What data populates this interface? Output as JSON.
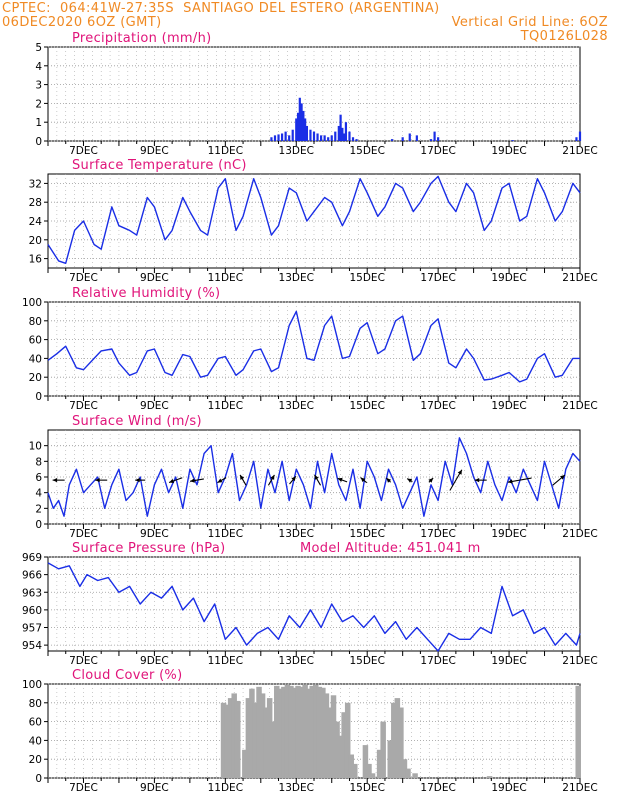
{
  "header": {
    "line1_left": "CPTEC:  064:41W-27:35S  SANTIAGO DEL ESTERO (ARGENTINA)",
    "line2_left": "06DEC2020 6OZ (GMT)",
    "line2_right": "Vertical Grid Line: 6OZ",
    "line3_right": "TQ0126L028"
  },
  "colors": {
    "header": "#f08a24",
    "title": "#e0147a",
    "series": "#1a2ee6",
    "cloud": "#a9a9a9"
  },
  "chart_data": [
    {
      "type": "bar",
      "title": "Precipitation (mm/h)",
      "ylim": [
        0,
        5
      ],
      "yticks": [
        0,
        1,
        2,
        3,
        4,
        5
      ],
      "xlim": [
        0,
        15
      ],
      "xticks": [
        {
          "x": 1,
          "label": "7DEC"
        },
        {
          "x": 3,
          "label": "9DEC"
        },
        {
          "x": 5,
          "label": "11DEC"
        },
        {
          "x": 7,
          "label": "13DEC"
        },
        {
          "x": 9,
          "label": "15DEC"
        },
        {
          "x": 11,
          "label": "17DEC"
        },
        {
          "x": 13,
          "label": "19DEC"
        },
        {
          "x": 15,
          "label": "21DEC"
        }
      ],
      "x": [
        6.3,
        6.4,
        6.5,
        6.6,
        6.7,
        6.8,
        6.9,
        7.0,
        7.05,
        7.1,
        7.15,
        7.2,
        7.25,
        7.3,
        7.4,
        7.5,
        7.6,
        7.7,
        7.8,
        7.9,
        8.0,
        8.1,
        8.2,
        8.25,
        8.3,
        8.35,
        8.4,
        8.5,
        8.6,
        8.7,
        9.7,
        10.0,
        10.2,
        10.4,
        10.8,
        10.9,
        11.0,
        13.1,
        14.9,
        15.0
      ],
      "values": [
        0.2,
        0.3,
        0.35,
        0.4,
        0.5,
        0.3,
        0.6,
        1.2,
        1.5,
        2.3,
        2.0,
        1.6,
        1.2,
        0.8,
        0.6,
        0.5,
        0.4,
        0.3,
        0.3,
        0.2,
        0.3,
        0.5,
        0.8,
        1.4,
        0.7,
        0.4,
        1.0,
        0.5,
        0.2,
        0.1,
        0.1,
        0.2,
        0.4,
        0.3,
        0.1,
        0.5,
        0.2,
        0.05,
        0.2,
        0.5
      ]
    },
    {
      "type": "line",
      "title": "Surface Temperature (nC)",
      "ylim": [
        14,
        34
      ],
      "yticks": [
        16,
        20,
        24,
        28,
        32
      ],
      "xlim": [
        0,
        15
      ],
      "xticks": [
        {
          "x": 1,
          "label": "7DEC"
        },
        {
          "x": 3,
          "label": "9DEC"
        },
        {
          "x": 5,
          "label": "11DEC"
        },
        {
          "x": 7,
          "label": "13DEC"
        },
        {
          "x": 9,
          "label": "15DEC"
        },
        {
          "x": 11,
          "label": "17DEC"
        },
        {
          "x": 13,
          "label": "19DEC"
        },
        {
          "x": 15,
          "label": "21DEC"
        }
      ],
      "x": [
        0,
        0.3,
        0.5,
        0.75,
        1.0,
        1.3,
        1.5,
        1.8,
        2.0,
        2.3,
        2.5,
        2.8,
        3.0,
        3.3,
        3.5,
        3.8,
        4.0,
        4.3,
        4.5,
        4.8,
        5.0,
        5.3,
        5.5,
        5.8,
        6.0,
        6.3,
        6.5,
        6.8,
        7.0,
        7.3,
        7.5,
        7.8,
        8.0,
        8.3,
        8.5,
        8.8,
        9.0,
        9.3,
        9.5,
        9.8,
        10.0,
        10.3,
        10.5,
        10.8,
        11.0,
        11.3,
        11.5,
        11.8,
        12.0,
        12.3,
        12.5,
        12.8,
        13.0,
        13.3,
        13.5,
        13.8,
        14.0,
        14.3,
        14.5,
        14.8,
        15.0
      ],
      "values": [
        19,
        15.5,
        15,
        22,
        24,
        19,
        18,
        27,
        23,
        22,
        21,
        29,
        27,
        20,
        22,
        29,
        26,
        22,
        21,
        31,
        33,
        22,
        25,
        33,
        29,
        21,
        23,
        31,
        30,
        24,
        26,
        29,
        28,
        23,
        26,
        33,
        30,
        25,
        27,
        32,
        31,
        26,
        28,
        32,
        33.5,
        28,
        26,
        32,
        30,
        22,
        24,
        31,
        32,
        24,
        25,
        33,
        30,
        24,
        26,
        32,
        30
      ]
    },
    {
      "type": "line",
      "title": "Relative Humidity (%)",
      "ylim": [
        0,
        100
      ],
      "yticks": [
        0,
        20,
        40,
        60,
        80,
        100
      ],
      "xlim": [
        0,
        15
      ],
      "xticks": [
        {
          "x": 1,
          "label": "7DEC"
        },
        {
          "x": 3,
          "label": "9DEC"
        },
        {
          "x": 5,
          "label": "11DEC"
        },
        {
          "x": 7,
          "label": "13DEC"
        },
        {
          "x": 9,
          "label": "15DEC"
        },
        {
          "x": 11,
          "label": "17DEC"
        },
        {
          "x": 13,
          "label": "19DEC"
        },
        {
          "x": 15,
          "label": "21DEC"
        }
      ],
      "x": [
        0,
        0.25,
        0.5,
        0.8,
        1.0,
        1.3,
        1.5,
        1.8,
        2.0,
        2.3,
        2.5,
        2.8,
        3.0,
        3.3,
        3.5,
        3.8,
        4.0,
        4.3,
        4.5,
        4.8,
        5.0,
        5.3,
        5.5,
        5.8,
        6.0,
        6.3,
        6.5,
        6.8,
        7.0,
        7.3,
        7.5,
        7.8,
        8.0,
        8.3,
        8.5,
        8.8,
        9.0,
        9.3,
        9.5,
        9.8,
        10.0,
        10.3,
        10.5,
        10.8,
        11.0,
        11.3,
        11.5,
        11.8,
        12.0,
        12.3,
        12.5,
        12.8,
        13.0,
        13.3,
        13.5,
        13.8,
        14.0,
        14.3,
        14.5,
        14.8,
        15.0
      ],
      "values": [
        38,
        45,
        53,
        30,
        28,
        40,
        48,
        50,
        35,
        22,
        25,
        48,
        50,
        25,
        22,
        44,
        42,
        20,
        22,
        40,
        42,
        22,
        28,
        48,
        50,
        26,
        30,
        75,
        90,
        40,
        38,
        75,
        85,
        40,
        42,
        72,
        78,
        45,
        50,
        80,
        85,
        38,
        45,
        75,
        82,
        35,
        30,
        50,
        40,
        17,
        18,
        22,
        25,
        15,
        18,
        40,
        45,
        20,
        22,
        40,
        40
      ]
    },
    {
      "type": "line",
      "title": "Surface Wind (m/s)",
      "ylim": [
        0,
        12
      ],
      "yticks": [
        0,
        2,
        4,
        6,
        8,
        10
      ],
      "xlim": [
        0,
        15
      ],
      "xticks": [
        {
          "x": 1,
          "label": "7DEC"
        },
        {
          "x": 3,
          "label": "9DEC"
        },
        {
          "x": 5,
          "label": "11DEC"
        },
        {
          "x": 7,
          "label": "13DEC"
        },
        {
          "x": 9,
          "label": "15DEC"
        },
        {
          "x": 11,
          "label": "17DEC"
        },
        {
          "x": 13,
          "label": "19DEC"
        },
        {
          "x": 15,
          "label": "21DEC"
        }
      ],
      "x": [
        0,
        0.15,
        0.3,
        0.45,
        0.6,
        0.8,
        1.0,
        1.2,
        1.4,
        1.6,
        1.8,
        2.0,
        2.2,
        2.4,
        2.6,
        2.8,
        3.0,
        3.2,
        3.4,
        3.6,
        3.8,
        4.0,
        4.2,
        4.4,
        4.6,
        4.8,
        5.0,
        5.2,
        5.4,
        5.6,
        5.8,
        6.0,
        6.2,
        6.4,
        6.6,
        6.8,
        7.0,
        7.2,
        7.4,
        7.6,
        7.8,
        8.0,
        8.2,
        8.4,
        8.6,
        8.8,
        9.0,
        9.2,
        9.4,
        9.6,
        9.8,
        10.0,
        10.2,
        10.4,
        10.6,
        10.8,
        11.0,
        11.2,
        11.4,
        11.6,
        11.8,
        12.0,
        12.2,
        12.4,
        12.6,
        12.8,
        13.0,
        13.2,
        13.4,
        13.6,
        13.8,
        14.0,
        14.2,
        14.4,
        14.6,
        14.8,
        15.0
      ],
      "values": [
        4,
        2,
        3,
        1,
        5,
        7,
        4,
        5,
        6,
        2,
        5,
        7,
        3,
        4,
        6,
        1,
        5,
        7,
        4,
        6,
        2,
        7,
        5,
        9,
        10,
        4,
        6,
        9,
        3,
        5,
        8,
        2,
        7,
        4,
        8,
        3,
        7,
        5,
        2,
        8,
        4,
        9,
        5,
        3,
        7,
        2,
        8,
        6,
        3,
        7,
        5,
        2,
        4,
        6,
        1,
        5,
        3,
        8,
        5,
        11,
        9,
        6,
        4,
        8,
        5,
        3,
        6,
        4,
        7,
        5,
        3,
        8,
        5,
        2,
        7,
        9,
        8
      ]
    },
    {
      "type": "line",
      "title": "Surface Pressure (hPa)",
      "annotation": "Model Altitude: 451.041 m",
      "ylim": [
        953,
        969
      ],
      "yticks": [
        954,
        957,
        960,
        963,
        966,
        969
      ],
      "xlim": [
        0,
        15
      ],
      "xticks": [
        {
          "x": 1,
          "label": "7DEC"
        },
        {
          "x": 3,
          "label": "9DEC"
        },
        {
          "x": 5,
          "label": "11DEC"
        },
        {
          "x": 7,
          "label": "13DEC"
        },
        {
          "x": 9,
          "label": "15DEC"
        },
        {
          "x": 11,
          "label": "17DEC"
        },
        {
          "x": 13,
          "label": "19DEC"
        },
        {
          "x": 15,
          "label": "21DEC"
        }
      ],
      "x": [
        0,
        0.3,
        0.6,
        0.9,
        1.1,
        1.4,
        1.7,
        2.0,
        2.3,
        2.6,
        2.9,
        3.2,
        3.5,
        3.8,
        4.1,
        4.4,
        4.7,
        5.0,
        5.3,
        5.6,
        5.9,
        6.2,
        6.5,
        6.8,
        7.1,
        7.4,
        7.7,
        8.0,
        8.3,
        8.6,
        8.9,
        9.2,
        9.5,
        9.8,
        10.1,
        10.4,
        10.7,
        11.0,
        11.3,
        11.6,
        11.9,
        12.2,
        12.5,
        12.8,
        13.1,
        13.4,
        13.7,
        14.0,
        14.3,
        14.6,
        14.9,
        15.0
      ],
      "values": [
        968,
        967,
        967.5,
        964,
        966,
        965,
        965.5,
        963,
        964,
        961,
        963,
        962,
        964,
        960,
        962,
        958,
        961,
        955,
        957,
        954,
        956,
        957,
        955,
        959,
        957,
        960,
        957,
        961,
        958,
        959,
        957,
        959,
        956,
        958,
        955,
        957,
        955,
        953,
        956,
        955,
        955,
        957,
        956,
        964,
        959,
        960,
        956,
        957,
        954,
        956,
        954,
        956
      ]
    },
    {
      "type": "bar",
      "title": "Cloud Cover (%)",
      "ylim": [
        0,
        100
      ],
      "yticks": [
        0,
        20,
        40,
        60,
        80,
        100
      ],
      "xlim": [
        0,
        15
      ],
      "xticks": [
        {
          "x": 1,
          "label": "7DEC"
        },
        {
          "x": 3,
          "label": "9DEC"
        },
        {
          "x": 5,
          "label": "11DEC"
        },
        {
          "x": 7,
          "label": "13DEC"
        },
        {
          "x": 9,
          "label": "15DEC"
        },
        {
          "x": 11,
          "label": "17DEC"
        },
        {
          "x": 13,
          "label": "19DEC"
        },
        {
          "x": 15,
          "label": "21DEC"
        }
      ],
      "x": [
        4.95,
        5.05,
        5.15,
        5.25,
        5.35,
        5.45,
        5.55,
        5.65,
        5.75,
        5.85,
        5.95,
        6.05,
        6.15,
        6.25,
        6.35,
        6.45,
        6.55,
        6.65,
        6.75,
        6.85,
        6.95,
        7.05,
        7.15,
        7.25,
        7.35,
        7.45,
        7.55,
        7.65,
        7.75,
        7.85,
        7.95,
        8.05,
        8.15,
        8.25,
        8.35,
        8.45,
        8.55,
        8.65,
        8.75,
        8.85,
        8.95,
        9.05,
        9.15,
        9.25,
        9.35,
        9.45,
        9.55,
        9.65,
        9.75,
        9.85,
        9.95,
        10.05,
        10.15,
        10.25,
        10.35,
        10.45,
        10.55,
        10.65,
        10.75,
        10.85,
        10.95,
        11.05,
        11.15,
        11.25,
        11.35,
        11.45,
        11.55,
        11.65,
        11.75,
        11.85,
        11.95,
        12.05,
        12.15,
        12.25,
        12.35,
        12.45,
        12.55,
        12.65,
        12.75,
        12.85,
        12.95,
        13.05,
        13.15,
        13.25,
        13.35,
        13.45,
        13.55,
        13.65,
        13.75,
        13.85,
        13.95,
        14.05,
        14.15,
        14.25,
        14.35,
        14.45,
        14.55,
        14.65,
        14.75,
        14.85,
        14.95
      ],
      "values": [
        80,
        78,
        85,
        90,
        82,
        0,
        30,
        85,
        95,
        80,
        97,
        90,
        75,
        85,
        60,
        98,
        95,
        97,
        99,
        98,
        96,
        98,
        97,
        99,
        95,
        98,
        99,
        97,
        96,
        90,
        75,
        88,
        60,
        45,
        70,
        80,
        25,
        15,
        0,
        0,
        35,
        15,
        5,
        0,
        30,
        60,
        0,
        40,
        80,
        85,
        75,
        20,
        10,
        0,
        5,
        0,
        0,
        0,
        0,
        0,
        0,
        0,
        0,
        0,
        0,
        0,
        0,
        0,
        0,
        0,
        0,
        0,
        0,
        0,
        0,
        2,
        0,
        0,
        0,
        0,
        0,
        0,
        0,
        0,
        0,
        0,
        0,
        0,
        0,
        0,
        0,
        0,
        0,
        0,
        0,
        0,
        0,
        0,
        0,
        0,
        98
      ]
    }
  ],
  "wind_arrows": [
    {
      "x": 0.3,
      "dir": 180,
      "len": 12
    },
    {
      "x": 1.5,
      "dir": 180,
      "len": 12
    },
    {
      "x": 2.6,
      "dir": 180,
      "len": 10
    },
    {
      "x": 3.6,
      "dir": 200,
      "len": 14
    },
    {
      "x": 4.2,
      "dir": 190,
      "len": 14
    },
    {
      "x": 4.9,
      "dir": 210,
      "len": 10
    },
    {
      "x": 5.5,
      "dir": 120,
      "len": 12
    },
    {
      "x": 6.3,
      "dir": 60,
      "len": 12
    },
    {
      "x": 6.9,
      "dir": 50,
      "len": 10
    },
    {
      "x": 7.6,
      "dir": 120,
      "len": 12
    },
    {
      "x": 8.3,
      "dir": 160,
      "len": 10
    },
    {
      "x": 8.9,
      "dir": 140,
      "len": 8
    },
    {
      "x": 9.6,
      "dir": 135,
      "len": 6
    },
    {
      "x": 10.2,
      "dir": 150,
      "len": 6
    },
    {
      "x": 10.8,
      "dir": 45,
      "len": 6
    },
    {
      "x": 11.5,
      "dir": 60,
      "len": 24
    },
    {
      "x": 12.2,
      "dir": 180,
      "len": 12
    },
    {
      "x": 13.3,
      "dir": 190,
      "len": 24
    },
    {
      "x": 14.4,
      "dir": 40,
      "len": 16
    }
  ]
}
